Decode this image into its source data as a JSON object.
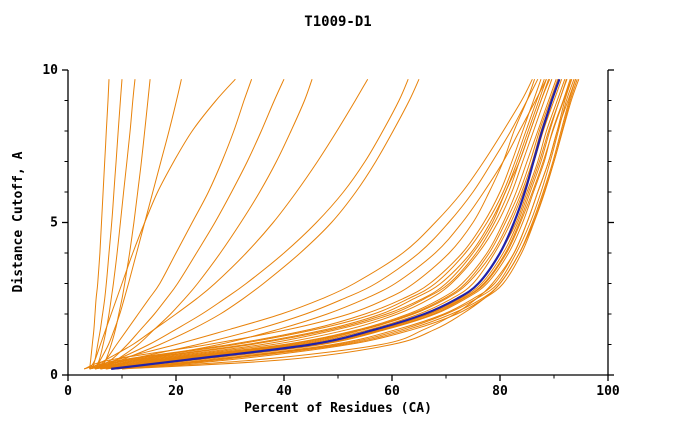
{
  "chart_data": {
    "type": "line",
    "title": "T1009-D1",
    "xlabel": "Percent of Residues (CA)",
    "ylabel": "Distance Cutoff, A",
    "xlim": [
      0,
      100
    ],
    "ylim": [
      0,
      10
    ],
    "x_major_ticks": [
      0,
      20,
      40,
      60,
      80,
      100
    ],
    "x_minor_ticks": [
      10,
      30,
      50,
      70,
      90
    ],
    "y_major_ticks": [
      0,
      5,
      10
    ],
    "y_minor_ticks": [
      1,
      2,
      3,
      4,
      6,
      7,
      8,
      9
    ],
    "legend": "none",
    "grid": false,
    "colors": {
      "model_lines": "#e8820a",
      "highlight_line": "#2121a8",
      "axis": "#000000"
    },
    "series_note": "Each model curve gives x (percent of residues) at the shared y_levels (distance cutoff in Angstroms)",
    "y_levels": [
      0.2,
      0.5,
      1,
      1.5,
      2,
      2.5,
      3,
      4,
      5,
      6,
      7,
      8,
      9,
      9.7
    ],
    "orange_series": [
      [
        4,
        4.2,
        4.5,
        4.8,
        5,
        5.2,
        5.5,
        5.9,
        6.2,
        6.5,
        6.8,
        7.1,
        7.4,
        7.6
      ],
      [
        4.5,
        5,
        5.5,
        6,
        6.4,
        6.8,
        7.1,
        7.6,
        8.1,
        8.5,
        8.9,
        9.3,
        9.7,
        10
      ],
      [
        5,
        5.8,
        6.5,
        7.1,
        7.6,
        8,
        8.4,
        9.1,
        9.7,
        10.3,
        10.9,
        11.5,
        12,
        12.4
      ],
      [
        6,
        7,
        8,
        8.8,
        9.4,
        10,
        10.5,
        11.4,
        12.2,
        12.9,
        13.6,
        14.2,
        14.8,
        15.2
      ],
      [
        5,
        6,
        7.5,
        8.6,
        9.6,
        10.4,
        11.2,
        12.7,
        14.2,
        15.7,
        17.2,
        18.7,
        20.1,
        21
      ],
      [
        4,
        5,
        6,
        7,
        8,
        9,
        10,
        12,
        14.2,
        16.6,
        19.6,
        23,
        27.4,
        31
      ],
      [
        5,
        7,
        9,
        11,
        13,
        15,
        17,
        20,
        23,
        26,
        28.5,
        30.7,
        32.6,
        34
      ],
      [
        5,
        8,
        11,
        13.5,
        16,
        18.2,
        20.3,
        23.8,
        27.2,
        30.3,
        33.2,
        35.8,
        38.2,
        40
      ],
      [
        6,
        9,
        13,
        16,
        19,
        21.6,
        24,
        28.2,
        32,
        35.5,
        38.6,
        41.3,
        43.8,
        45.2
      ],
      [
        4,
        7,
        12,
        16,
        20,
        23.8,
        27.2,
        33,
        38,
        42.3,
        46.2,
        49.8,
        53.2,
        55.5
      ],
      [
        5,
        9,
        15,
        20,
        24.8,
        29,
        33,
        40,
        46,
        51,
        55,
        58.3,
        61.3,
        63
      ],
      [
        6,
        10,
        17,
        23,
        28.2,
        32.4,
        36.2,
        43,
        48.8,
        53.3,
        57,
        60.2,
        63.2,
        65
      ],
      [
        4,
        9,
        20,
        30,
        39.5,
        47,
        53,
        62,
        68,
        73,
        77,
        80.6,
        84,
        86
      ],
      [
        5,
        11,
        24,
        35,
        44,
        51,
        57,
        65,
        70.5,
        75,
        78.6,
        82,
        85,
        87
      ],
      [
        6,
        13,
        28,
        39,
        48,
        55,
        60.6,
        68,
        73,
        77,
        80.6,
        83.6,
        86.6,
        88.6
      ],
      [
        3,
        10,
        30,
        45,
        55,
        62,
        67,
        73,
        77,
        80,
        82.2,
        84.2,
        86.2,
        87.6
      ],
      [
        4,
        12,
        33,
        48,
        58,
        64,
        69,
        74.6,
        78.2,
        81,
        83.2,
        85.2,
        87.2,
        88.6
      ],
      [
        5,
        15,
        38,
        52,
        61,
        67,
        71,
        76,
        79.6,
        82.2,
        84.2,
        86.2,
        88.2,
        89.6
      ],
      [
        6,
        18,
        42,
        55,
        64,
        70,
        74,
        78.6,
        81.6,
        84,
        86,
        87.6,
        89.6,
        91
      ],
      [
        7,
        20,
        44,
        57,
        66,
        72,
        76,
        80,
        83,
        85,
        87,
        88.6,
        90.6,
        92
      ],
      [
        8,
        24,
        47,
        59,
        68,
        73.6,
        77.6,
        81.6,
        84.2,
        86.2,
        88.2,
        89.7,
        91.7,
        93
      ],
      [
        9,
        26,
        49,
        61,
        69.6,
        75,
        79,
        82.6,
        85,
        87,
        89,
        90.6,
        92.6,
        94
      ],
      [
        10,
        28,
        51,
        63,
        71,
        76.6,
        80,
        83.6,
        86.2,
        88.2,
        90,
        91.6,
        93.2,
        94.6
      ],
      [
        4,
        14,
        36,
        50,
        60,
        66,
        70.6,
        75.6,
        79,
        81.6,
        83.6,
        85.6,
        87.6,
        89
      ],
      [
        6,
        16,
        40,
        54,
        63,
        69,
        73,
        77.6,
        80.6,
        83,
        85,
        87,
        89,
        90.4
      ],
      [
        5,
        13,
        34,
        49,
        59,
        65.6,
        70,
        75,
        78.6,
        81,
        83.6,
        85.6,
        87.6,
        89.2
      ],
      [
        7,
        21,
        45,
        58,
        67,
        73,
        77,
        81,
        83.6,
        85.6,
        87.6,
        89.2,
        91,
        92.4
      ],
      [
        8,
        23,
        46,
        58.6,
        67.6,
        73.2,
        77.2,
        81.2,
        83.8,
        86,
        88,
        89.8,
        91.8,
        93.2
      ],
      [
        3,
        8,
        26,
        41,
        52,
        59,
        64,
        70.6,
        75,
        78,
        80.6,
        82.6,
        85,
        86.4
      ],
      [
        4,
        11,
        31,
        46,
        56.6,
        63,
        68,
        73.6,
        77.6,
        80.6,
        82.8,
        84.8,
        86.8,
        88.2
      ],
      [
        9,
        27,
        50,
        62,
        70,
        75.6,
        79.6,
        83,
        85.6,
        87.6,
        89.3,
        90.8,
        92.3,
        93.7
      ],
      [
        10,
        30,
        52,
        64,
        72,
        77,
        80.6,
        84,
        86.3,
        88.3,
        90,
        91.5,
        93,
        94.3
      ],
      [
        5,
        17,
        41,
        54.6,
        63.6,
        69.6,
        73.6,
        78,
        81,
        83.6,
        85.6,
        87.3,
        89.3,
        90.7
      ],
      [
        6,
        19,
        43,
        56,
        65,
        71,
        75,
        79,
        82,
        84.3,
        86.3,
        88,
        90,
        91.4
      ],
      [
        7,
        22,
        46,
        58,
        66.6,
        72.6,
        76.6,
        80.6,
        83.3,
        85.3,
        87.3,
        89,
        91,
        92.3
      ],
      [
        8,
        35,
        58,
        66,
        71.6,
        75.6,
        78.6,
        82.6,
        85,
        87,
        89,
        90.6,
        92,
        93.3
      ],
      [
        10,
        40,
        60,
        68,
        73,
        77,
        80,
        83.6,
        86,
        88,
        89.8,
        91.3,
        92.8,
        94
      ]
    ],
    "blue_series": [
      8,
      22,
      45,
      57,
      66,
      72,
      76,
      80,
      82.6,
      84.6,
      86.2,
      87.8,
      89.6,
      91
    ]
  }
}
